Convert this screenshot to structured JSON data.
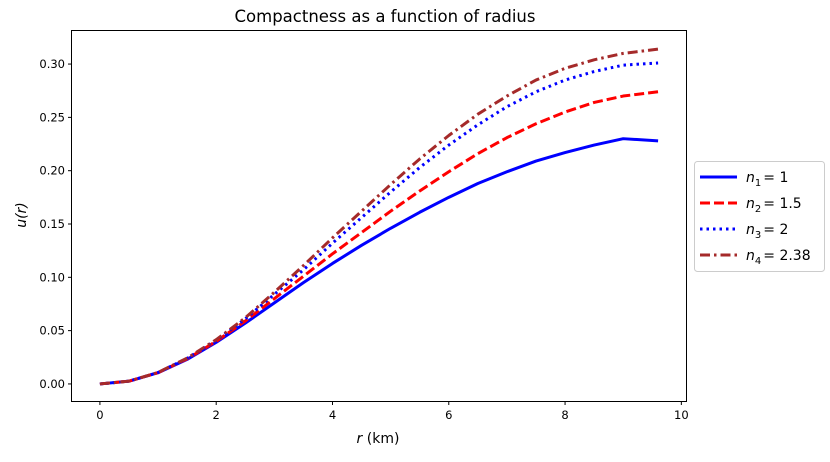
{
  "chart_data": {
    "type": "line",
    "title": "Compactness as a function of radius",
    "xlabel": {
      "math": "r",
      "unit": " (km)"
    },
    "ylabel": "u(r)",
    "xlim": [
      -0.48,
      10.08
    ],
    "ylim": [
      -0.016,
      0.331
    ],
    "xticks": [
      {
        "value": 0,
        "label": "0"
      },
      {
        "value": 2,
        "label": "2"
      },
      {
        "value": 4,
        "label": "4"
      },
      {
        "value": 6,
        "label": "6"
      },
      {
        "value": 8,
        "label": "8"
      },
      {
        "value": 10,
        "label": "10"
      }
    ],
    "yticks": [
      {
        "value": 0.0,
        "label": "0.00"
      },
      {
        "value": 0.05,
        "label": "0.05"
      },
      {
        "value": 0.1,
        "label": "0.10"
      },
      {
        "value": 0.15,
        "label": "0.15"
      },
      {
        "value": 0.2,
        "label": "0.20"
      },
      {
        "value": 0.25,
        "label": "0.25"
      },
      {
        "value": 0.3,
        "label": "0.30"
      }
    ],
    "grid": false,
    "legend_position": "outside-right",
    "x": [
      0,
      0.5,
      1,
      1.5,
      2,
      2.5,
      3,
      3.5,
      4,
      4.5,
      5,
      5.5,
      6,
      6.5,
      7,
      7.5,
      8,
      8.5,
      9,
      9.6
    ],
    "series": [
      {
        "name": "n1 = 1",
        "label_var": "n",
        "label_sub": "1",
        "label_value": "1",
        "color": "#0000ff",
        "style": "solid",
        "values": [
          0,
          0.0026,
          0.0105,
          0.023,
          0.039,
          0.057,
          0.076,
          0.095,
          0.113,
          0.13,
          0.146,
          0.161,
          0.175,
          0.188,
          0.199,
          0.209,
          0.217,
          0.224,
          0.23,
          0.228
        ]
      },
      {
        "name": "n2 = 1.5",
        "label_var": "n",
        "label_sub": "2",
        "label_value": "1.5",
        "color": "#ff0000",
        "style": "dashed",
        "values": [
          0,
          0.0026,
          0.0106,
          0.0235,
          0.04,
          0.059,
          0.08,
          0.101,
          0.122,
          0.142,
          0.162,
          0.181,
          0.199,
          0.216,
          0.231,
          0.244,
          0.255,
          0.264,
          0.27,
          0.274
        ]
      },
      {
        "name": "n3 = 2",
        "label_var": "n",
        "label_sub": "3",
        "label_value": "2",
        "color": "#0000ff",
        "style": "dotted",
        "values": [
          0,
          0.0026,
          0.0107,
          0.024,
          0.041,
          0.061,
          0.084,
          0.107,
          0.132,
          0.156,
          0.18,
          0.203,
          0.224,
          0.243,
          0.26,
          0.274,
          0.285,
          0.293,
          0.299,
          0.301
        ]
      },
      {
        "name": "n4 = 2.38",
        "label_var": "n",
        "label_sub": "4",
        "label_value": "2.38",
        "color": "#a52a2a",
        "style": "dashdot",
        "values": [
          0,
          0.0026,
          0.0108,
          0.0242,
          0.0415,
          0.062,
          0.086,
          0.111,
          0.137,
          0.162,
          0.187,
          0.211,
          0.233,
          0.253,
          0.27,
          0.285,
          0.296,
          0.304,
          0.31,
          0.314
        ]
      }
    ]
  }
}
